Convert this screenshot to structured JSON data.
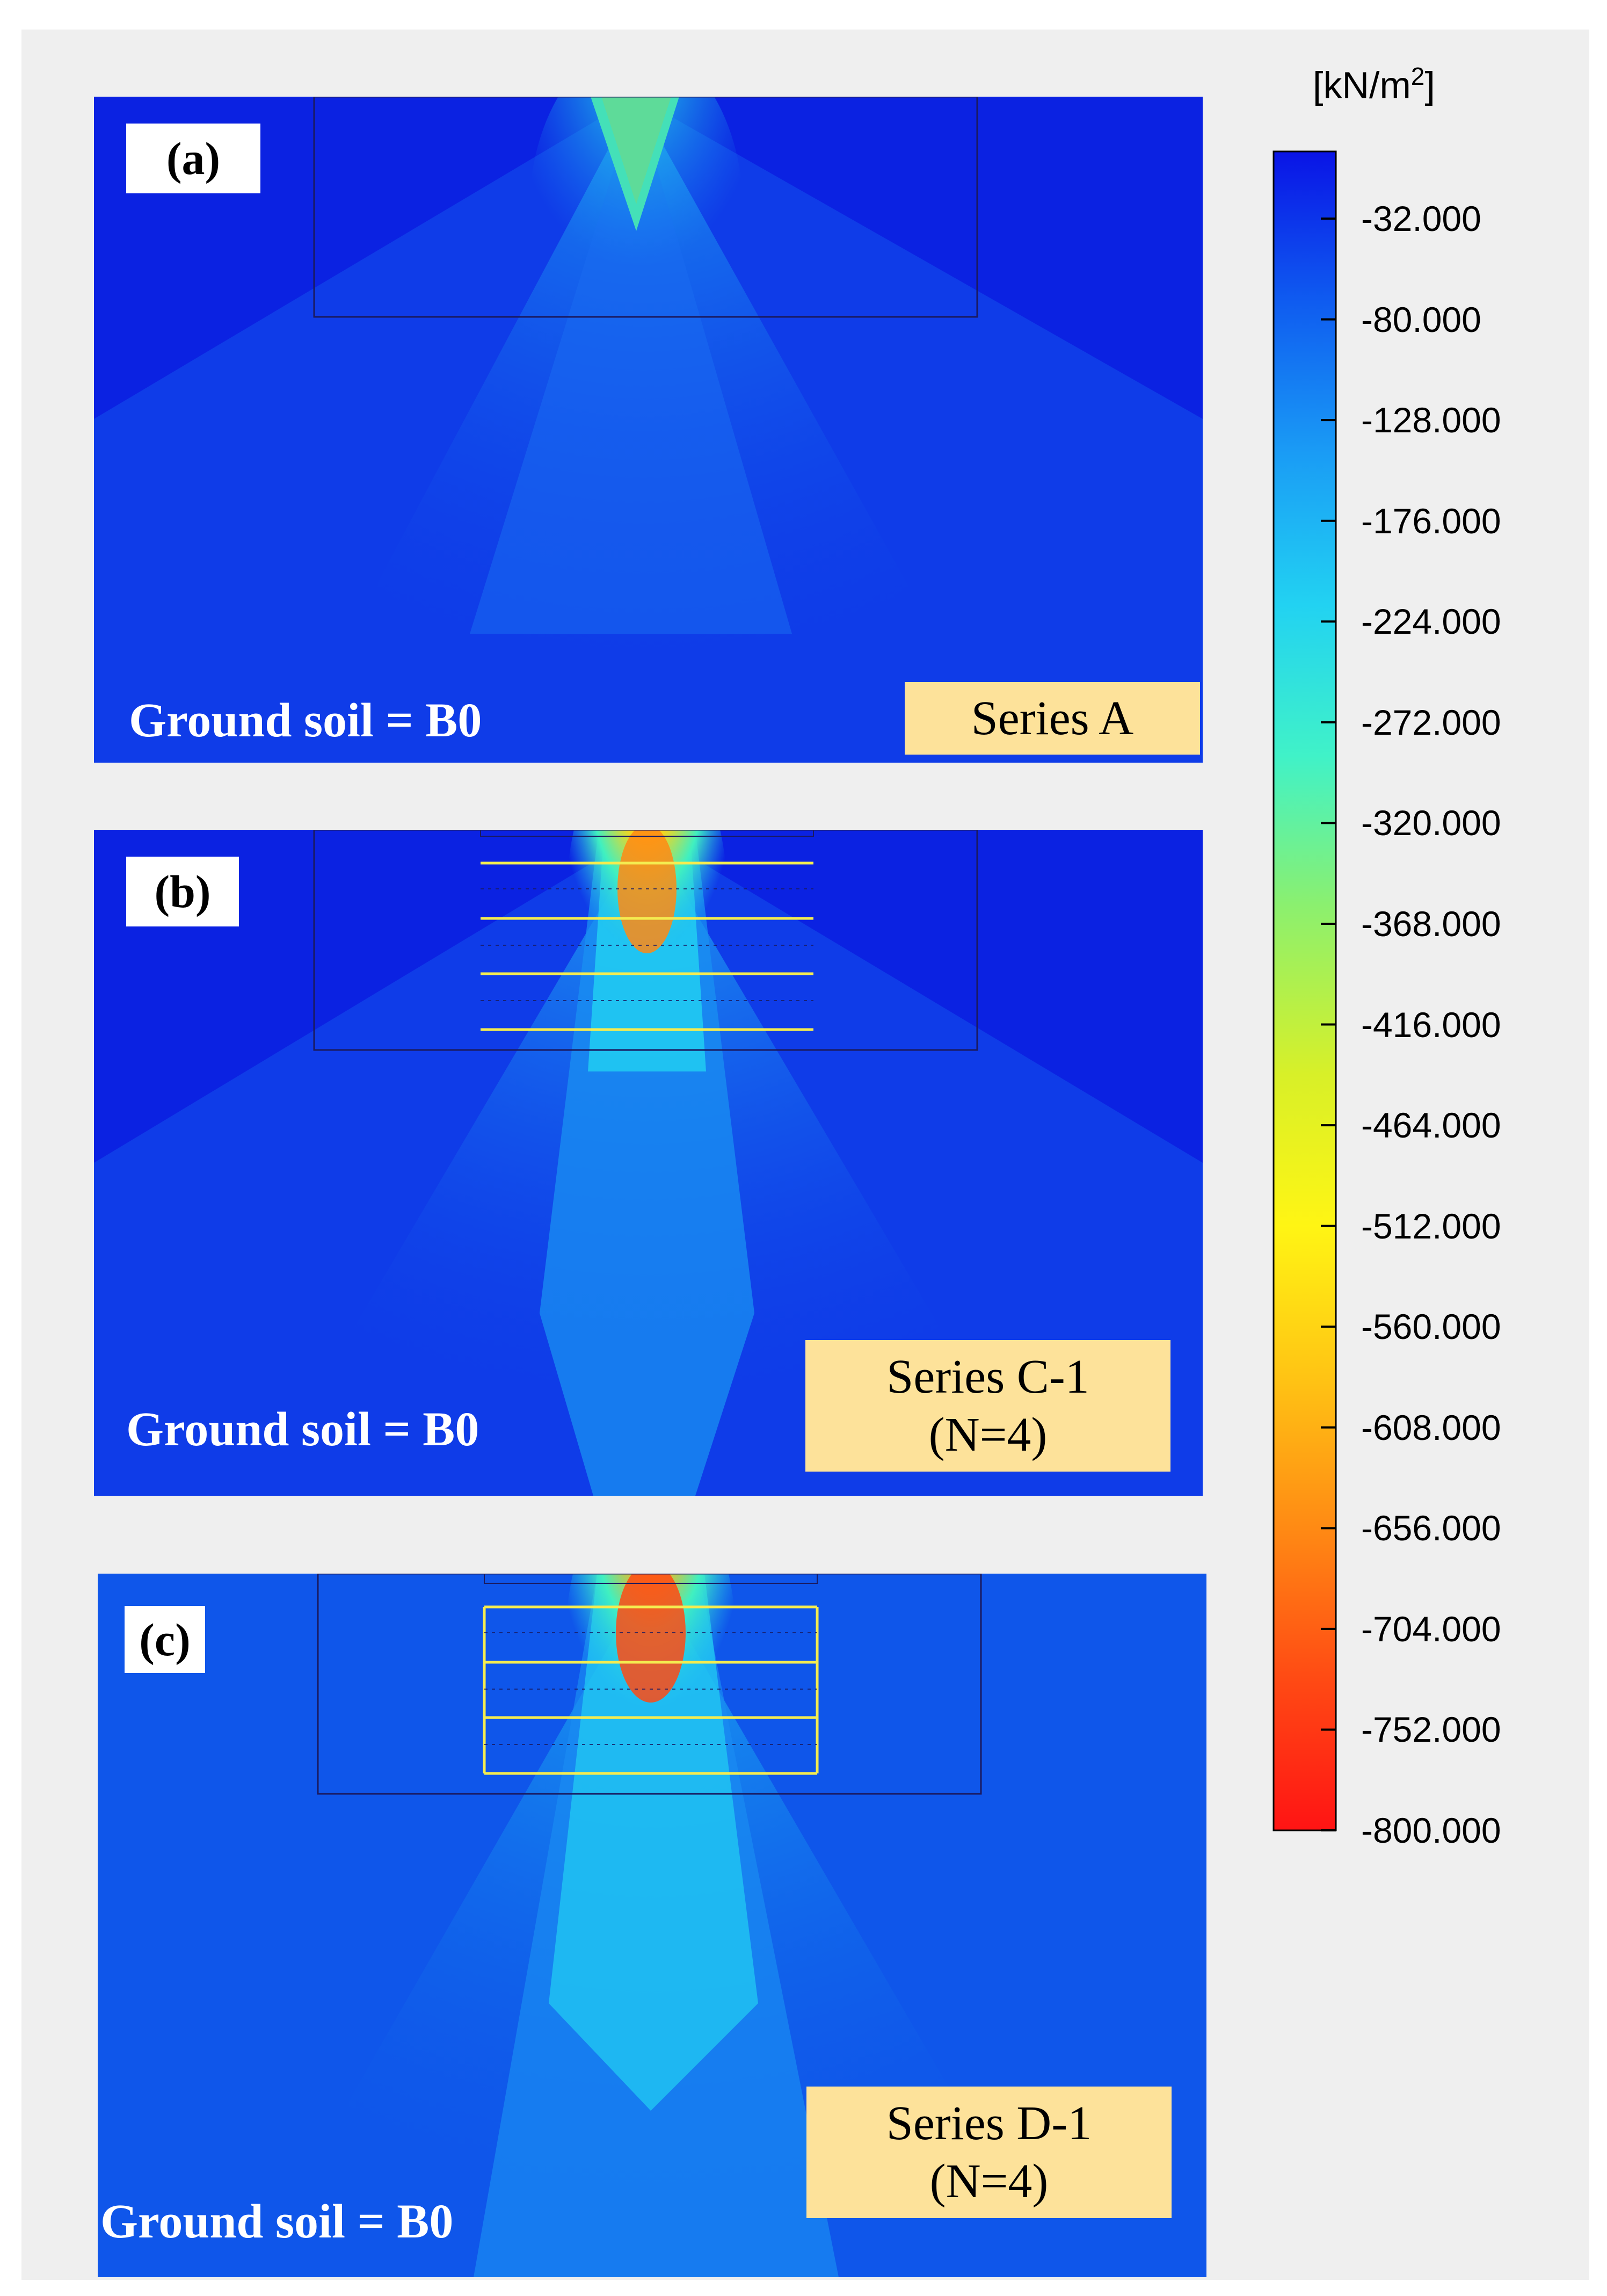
{
  "chart_data": {
    "type": "heatmap",
    "title": "",
    "quantity_unit": "[kN/m2]",
    "colorbar": {
      "unit_text": "[kN/m",
      "unit_superscript": "2",
      "unit_close": "]",
      "range": [
        -800.0,
        0.0
      ],
      "colors_top_to_bottom": [
        "#0a14e6",
        "#0f5cf0",
        "#1a9cf5",
        "#22d2f2",
        "#40f2c8",
        "#8cf06e",
        "#d8f028",
        "#fff514",
        "#ffc414",
        "#ff8a14",
        "#ff4a14",
        "#ff1414"
      ],
      "ticks": [
        "-32.000",
        "-80.000",
        "-128.000",
        "-176.000",
        "-224.000",
        "-272.000",
        "-320.000",
        "-368.000",
        "-416.000",
        "-464.000",
        "-512.000",
        "-560.000",
        "-608.000",
        "-656.000",
        "-704.000",
        "-752.000",
        "-800.000"
      ]
    },
    "panels": [
      {
        "tag": "(a)",
        "ground_soil": "Ground soil = B0",
        "series_line1": "Series A",
        "series_line2": "",
        "peak_stress": -390
      },
      {
        "tag": "(b)",
        "ground_soil": "Ground soil = B0",
        "series_line1": "Series C-1",
        "series_line2": "(N=4)",
        "peak_stress": -640
      },
      {
        "tag": "(c)",
        "ground_soil": "Ground soil = B0",
        "series_line1": "Series D-1",
        "series_line2": "(N=4)",
        "peak_stress": -720
      }
    ]
  }
}
